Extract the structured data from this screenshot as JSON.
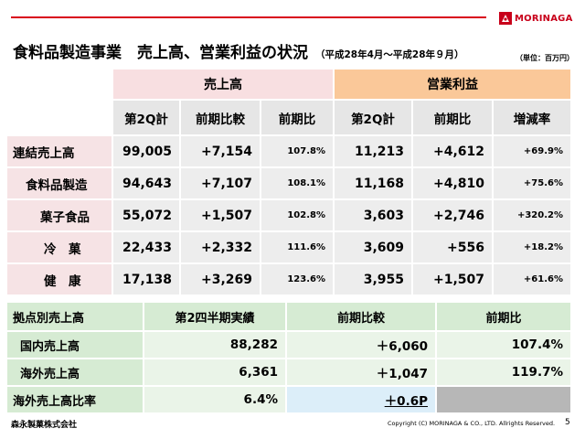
{
  "header": {
    "logo_text": "MORINAGA"
  },
  "title": {
    "main": "食料品製造事業　売上高、営業利益の状況",
    "period": "（平成28年4月～平成28年９月）"
  },
  "unit_note": "（単位：百万円）",
  "table1": {
    "group_sales": "売上高",
    "group_profit": "営業利益",
    "col_headers": [
      "第2Q計",
      "前期比較",
      "前期比",
      "第2Q計",
      "前期比",
      "増減率"
    ],
    "rows": [
      {
        "label": "連結売上高",
        "s_2q": "99,005",
        "s_diff": "+7,154",
        "s_ratio": "107.8%",
        "p_2q": "11,213",
        "p_diff": "+4,612",
        "p_rate": "+69.9%"
      },
      {
        "label": "食料品製造",
        "s_2q": "94,643",
        "s_diff": "+7,107",
        "s_ratio": "108.1%",
        "p_2q": "11,168",
        "p_diff": "+4,810",
        "p_rate": "+75.6%"
      },
      {
        "label": "菓子食品",
        "s_2q": "55,072",
        "s_diff": "+1,507",
        "s_ratio": "102.8%",
        "p_2q": "3,603",
        "p_diff": "+2,746",
        "p_rate": "+320.2%"
      },
      {
        "label": "冷　菓",
        "s_2q": "22,433",
        "s_diff": "+2,332",
        "s_ratio": "111.6%",
        "p_2q": "3,609",
        "p_diff": "+556",
        "p_rate": "+18.2%"
      },
      {
        "label": "健　康",
        "s_2q": "17,138",
        "s_diff": "+3,269",
        "s_ratio": "123.6%",
        "p_2q": "3,955",
        "p_diff": "+1,507",
        "p_rate": "+61.6%"
      }
    ]
  },
  "table2": {
    "headers": [
      "拠点別売上高",
      "第2四半期実績",
      "前期比較",
      "前期比"
    ],
    "rows": [
      {
        "label": "国内売上高",
        "actual": "88,282",
        "diff": "＋6,060",
        "ratio": "107.4%"
      },
      {
        "label": "海外売上高",
        "actual": "6,361",
        "diff": "＋1,047",
        "ratio": "119.7%"
      },
      {
        "label": "海外売上高比率",
        "actual": "6.4%",
        "diff": "＋0.6P",
        "ratio": ""
      }
    ]
  },
  "footer": {
    "company": "森永製菓株式会社",
    "copyright": "Copyright (C) MORINAGA & CO., LTD. Allrights Reserved.",
    "page": "5"
  }
}
